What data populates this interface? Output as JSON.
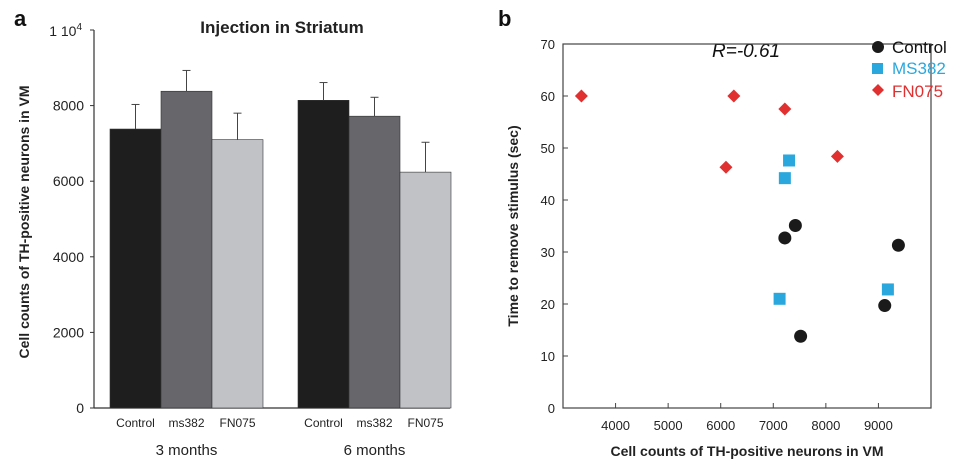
{
  "panels": {
    "a": {
      "letter": "a"
    },
    "b": {
      "letter": "b"
    }
  },
  "chart_data": [
    {
      "type": "bar",
      "panel": "a",
      "title": "Injection in Striatum",
      "ylabel": "Cell counts of TH-positive neurons in VM",
      "ylim": [
        0,
        10000
      ],
      "yticks": [
        0,
        2000,
        4000,
        6000,
        8000
      ],
      "ytick_top_label": "1 10",
      "ytick_top_exponent": "4",
      "groups": [
        {
          "label": "3 months",
          "bars": [
            {
              "label": "Control",
              "value": 7380,
              "error": 650,
              "color": "#1e1e1e"
            },
            {
              "label": "ms382",
              "value": 8380,
              "error": 550,
              "color": "#66666b"
            },
            {
              "label": "FN075",
              "value": 7100,
              "error": 700,
              "color": "#c0c2c6"
            }
          ]
        },
        {
          "label": "6 months",
          "bars": [
            {
              "label": "Control",
              "value": 8140,
              "error": 470,
              "color": "#1e1e1e"
            },
            {
              "label": "ms382",
              "value": 7720,
              "error": 500,
              "color": "#66666b"
            },
            {
              "label": "FN075",
              "value": 6240,
              "error": 790,
              "color": "#c0c2c6"
            }
          ]
        }
      ]
    },
    {
      "type": "scatter",
      "panel": "b",
      "xlabel": "Cell counts of TH-positive neurons in VM",
      "ylabel": "Time to remove stimulus (sec)",
      "xlim": [
        3000,
        10000
      ],
      "ylim": [
        0,
        70
      ],
      "xticks": [
        4000,
        5000,
        6000,
        7000,
        8000,
        9000
      ],
      "yticks": [
        0,
        10,
        20,
        30,
        40,
        50,
        60,
        70
      ],
      "annotation": "R=-0.61",
      "legend_position": "top-right",
      "series": [
        {
          "name": "Control",
          "marker": "circle",
          "color": "#1a1a1a",
          "label_color": "#111111",
          "points": [
            [
              7220,
              32.7
            ],
            [
              7420,
              35.1
            ],
            [
              7520,
              13.8
            ],
            [
              9120,
              19.7
            ],
            [
              9380,
              31.3
            ]
          ]
        },
        {
          "name": "MS382",
          "marker": "square",
          "color": "#2aa8de",
          "label_color": "#2aa8de",
          "points": [
            [
              7300,
              47.6
            ],
            [
              7220,
              44.2
            ],
            [
              7120,
              21.0
            ],
            [
              9180,
              22.8
            ]
          ]
        },
        {
          "name": "FN075",
          "marker": "diamond",
          "color": "#e03030",
          "label_color": "#e03030",
          "points": [
            [
              3350,
              60.0
            ],
            [
              6250,
              60.0
            ],
            [
              7220,
              57.5
            ],
            [
              6100,
              46.3
            ],
            [
              8220,
              48.4
            ]
          ]
        }
      ]
    }
  ]
}
